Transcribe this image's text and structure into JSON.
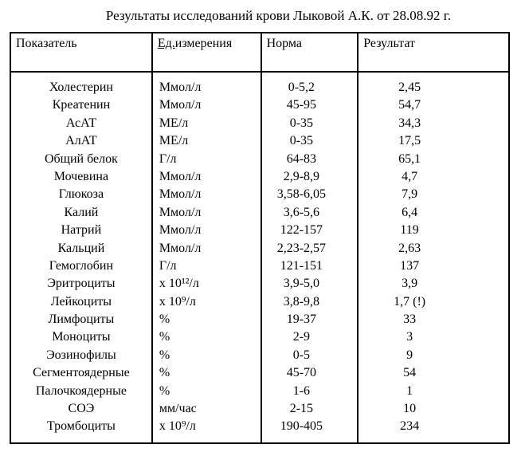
{
  "title": "Результаты исследований крови Лыковой А.К. от 28.08.92 г.",
  "headers": {
    "indicator": "Показатель",
    "unit_prefix": "Ед.",
    "unit_suffix": "измерения",
    "norm": "Норма",
    "result": "Результат"
  },
  "rows": [
    {
      "indicator": "Холестерин",
      "unit": "Ммол/л",
      "norm": "0-5,2",
      "result": "2,45"
    },
    {
      "indicator": "Креатенин",
      "unit": "Ммол/л",
      "norm": "45-95",
      "result": "54,7"
    },
    {
      "indicator": "АсАТ",
      "unit": "МЕ/л",
      "norm": "0-35",
      "result": "34,3"
    },
    {
      "indicator": "АлАТ",
      "unit": "МЕ/л",
      "norm": "0-35",
      "result": "17,5"
    },
    {
      "indicator": "Общий белок",
      "unit": "Г/л",
      "norm": "64-83",
      "result": "65,1"
    },
    {
      "indicator": "Мочевина",
      "unit": "Ммол/л",
      "norm": "2,9-8,9",
      "result": "4,7"
    },
    {
      "indicator": "Глюкоза",
      "unit": "Ммол/л",
      "norm": "3,58-6,05",
      "result": "7,9"
    },
    {
      "indicator": "Калий",
      "unit": "Ммол/л",
      "norm": "3,6-5,6",
      "result": "6,4"
    },
    {
      "indicator": "Натрий",
      "unit": "Ммол/л",
      "norm": "122-157",
      "result": "119"
    },
    {
      "indicator": "Кальций",
      "unit": "Ммол/л",
      "norm": "2,23-2,57",
      "result": "2,63"
    },
    {
      "indicator": "Гемоглобин",
      "unit": "Г/л",
      "norm": "121-151",
      "result": "137"
    },
    {
      "indicator": "Эритроциты",
      "unit": "х 10¹²/л",
      "norm": "3,9-5,0",
      "result": "3,9"
    },
    {
      "indicator": "Лейкоциты",
      "unit": "х 10⁹/л",
      "norm": "3,8-9,8",
      "result": "1,7 (!)"
    },
    {
      "indicator": "Лимфоциты",
      "unit": "%",
      "norm": "19-37",
      "result": "33"
    },
    {
      "indicator": "Моноциты",
      "unit": "%",
      "norm": "2-9",
      "result": "3"
    },
    {
      "indicator": "Эозинофилы",
      "unit": "%",
      "norm": "0-5",
      "result": "9"
    },
    {
      "indicator": "Сегментоядерные",
      "unit": "%",
      "norm": "45-70",
      "result": "54"
    },
    {
      "indicator": "Палочкоядерные",
      "unit": "%",
      "norm": "1-6",
      "result": "1"
    },
    {
      "indicator": "СОЭ",
      "unit": "мм/час",
      "norm": "2-15",
      "result": "10"
    },
    {
      "indicator": "Тромбоциты",
      "unit": "х 10⁹/л",
      "norm": "190-405",
      "result": "234"
    }
  ]
}
